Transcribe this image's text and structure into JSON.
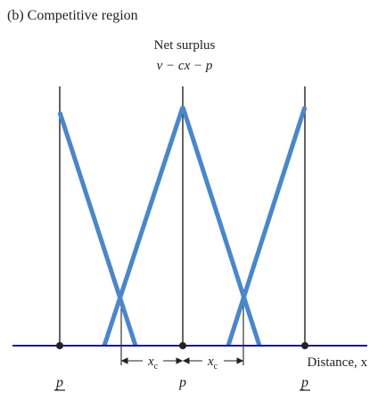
{
  "panel_title": "(b) Competitive region",
  "y_axis": {
    "title": "Net surplus",
    "formula": "v − cx − p"
  },
  "x_axis": {
    "label": "Distance, x"
  },
  "markets": [
    {
      "price_label": "p",
      "underlined": true
    },
    {
      "price_label": "p",
      "underlined": false
    },
    {
      "price_label": "p",
      "underlined": true
    }
  ],
  "xc_labels": [
    "x",
    "x"
  ],
  "xc_subscript": "c",
  "colors": {
    "line": "#4a86cc",
    "axis": "#1b1b8f",
    "text": "#222222"
  }
}
